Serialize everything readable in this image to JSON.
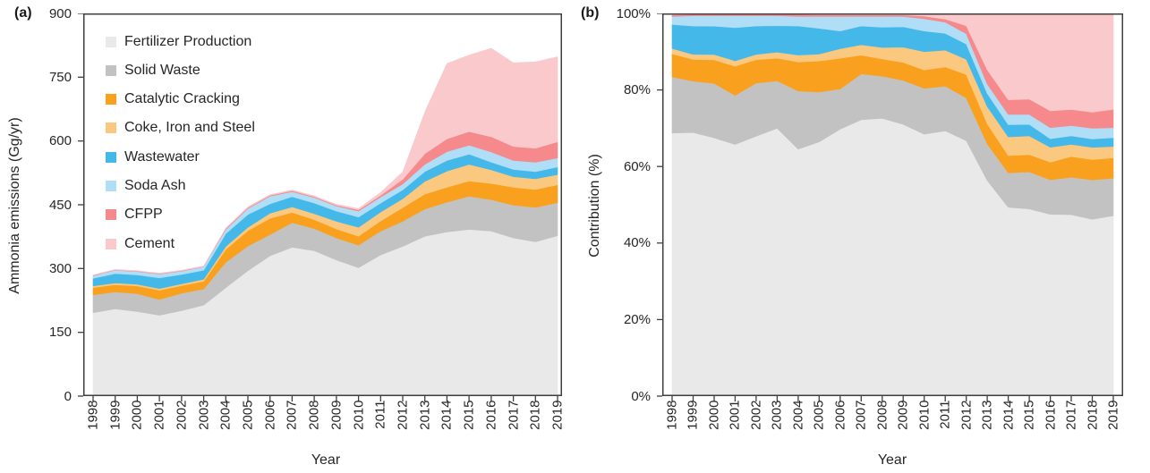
{
  "figure": {
    "background": "#ffffff",
    "axis_color": "#3f3f3f",
    "text_color": "#262626"
  },
  "series_colors": {
    "fertilizer_production": "#E9E9E9",
    "solid_waste": "#C2C2C2",
    "catalytic_cracking": "#F9A11F",
    "coke_iron_and_steel": "#FAC87E",
    "wastewater": "#45B8EA",
    "soda_ash": "#AFDEF6",
    "cfpp": "#F5898C",
    "cement": "#FAC9CC"
  },
  "chart_data": [
    {
      "id": "a",
      "panel_label": "(a)",
      "type": "area",
      "stacked": true,
      "percent": false,
      "xlabel": "Year",
      "ylabel": "Ammonia emissions (Gg/yr)",
      "ylim": [
        0,
        900
      ],
      "yticks": [
        0,
        150,
        300,
        450,
        600,
        750,
        900
      ],
      "ytick_labels": [
        "0",
        "150",
        "300",
        "450",
        "600",
        "750",
        "900"
      ],
      "legend_position": "upper-left",
      "grid": false,
      "x": [
        1998,
        1999,
        2000,
        2001,
        2002,
        2003,
        2004,
        2005,
        2006,
        2007,
        2008,
        2009,
        2010,
        2011,
        2012,
        2013,
        2014,
        2015,
        2016,
        2017,
        2018,
        2019
      ],
      "series": [
        {
          "key": "fertilizer_production",
          "name": "Fertilizer Production",
          "color": "#E9E9E9",
          "values": [
            196,
            205,
            199,
            190,
            201,
            214,
            255,
            295,
            330,
            350,
            342,
            320,
            302,
            332,
            352,
            376,
            386,
            392,
            388,
            372,
            363,
            377
          ]
        },
        {
          "key": "solid_waste",
          "name": "Solid Waste",
          "color": "#C2C2C2",
          "values": [
            42,
            40,
            42,
            37,
            41,
            38,
            60,
            58,
            50,
            58,
            52,
            52,
            53,
            56,
            59,
            64,
            70,
            78,
            74,
            77,
            81,
            78
          ]
        },
        {
          "key": "catalytic_cracking",
          "name": "Catalytic Cracking",
          "color": "#F9A11F",
          "values": [
            17,
            17,
            18,
            22,
            18,
            18,
            30,
            36,
            38,
            24,
            21,
            21,
            21,
            24,
            32,
            35,
            35,
            36,
            38,
            42,
            42,
            42
          ]
        },
        {
          "key": "coke_iron_and_steel",
          "name": "Coke, Iron and Steel",
          "color": "#FAC87E",
          "values": [
            4,
            4,
            4,
            4,
            4,
            5,
            7,
            8,
            12,
            13,
            14,
            18,
            21,
            21,
            21,
            30,
            38,
            39,
            32,
            25,
            25,
            24
          ]
        },
        {
          "key": "wastewater",
          "name": "Wastewater",
          "color": "#45B8EA",
          "values": [
            18,
            22,
            22,
            25,
            22,
            21,
            30,
            30,
            22,
            24,
            25,
            24,
            24,
            21,
            21,
            23,
            25,
            24,
            18,
            17,
            17,
            18
          ]
        },
        {
          "key": "soda_ash",
          "name": "Soda Ash",
          "color": "#AFDEF6",
          "values": [
            6,
            8,
            8,
            9,
            8,
            8,
            10,
            14,
            18,
            12,
            13,
            12,
            14,
            14,
            14,
            17,
            21,
            21,
            24,
            21,
            22,
            21
          ]
        },
        {
          "key": "cfpp",
          "name": "CFPP",
          "color": "#F5898C",
          "values": [
            1,
            1,
            1,
            1,
            1,
            1,
            2,
            2,
            2,
            2,
            2,
            2,
            3,
            4,
            11,
            25,
            30,
            32,
            36,
            33,
            33,
            38
          ]
        },
        {
          "key": "cement",
          "name": "Cement",
          "color": "#FAC9CC",
          "values": [
            1,
            1,
            1,
            1,
            1,
            1,
            1,
            2,
            2,
            2,
            2,
            2,
            3,
            7,
            17,
            98,
            177,
            180,
            208,
            197,
            203,
            200
          ]
        }
      ]
    },
    {
      "id": "b",
      "panel_label": "(b)",
      "type": "area",
      "stacked": true,
      "percent": true,
      "xlabel": "Year",
      "ylabel": "Contribution (%)",
      "ylim": [
        0,
        100
      ],
      "yticks": [
        0,
        20,
        40,
        60,
        80,
        100
      ],
      "ytick_labels": [
        "0%",
        "20%",
        "40%",
        "60%",
        "80%",
        "100%"
      ],
      "legend_position": "none",
      "grid": false,
      "x": [
        1998,
        1999,
        2000,
        2001,
        2002,
        2003,
        2004,
        2005,
        2006,
        2007,
        2008,
        2009,
        2010,
        2011,
        2012,
        2013,
        2014,
        2015,
        2016,
        2017,
        2018,
        2019
      ],
      "series": [
        {
          "key": "fertilizer_production",
          "name": "Fertilizer Production",
          "color": "#E9E9E9",
          "values": [
            68.8,
            68.8,
            67.2,
            65.7,
            67.9,
            69.9,
            64.6,
            66.3,
            69.6,
            72.2,
            72.6,
            71.0,
            68.5,
            69.3,
            66.8,
            56.3,
            49.4,
            48.9,
            47.4,
            47.4,
            46.2,
            47.2
          ]
        },
        {
          "key": "solid_waste",
          "name": "Solid Waste",
          "color": "#C2C2C2",
          "values": [
            14.7,
            13.4,
            14.2,
            12.8,
            13.9,
            12.4,
            15.2,
            13.0,
            10.5,
            12.0,
            11.0,
            11.5,
            12.0,
            11.7,
            11.2,
            9.6,
            9.0,
            9.7,
            9.0,
            9.8,
            10.3,
            9.8
          ]
        },
        {
          "key": "catalytic_cracking",
          "name": "Catalytic Cracking",
          "color": "#F9A11F",
          "values": [
            6.0,
            5.7,
            6.1,
            7.6,
            6.1,
            5.9,
            7.6,
            8.1,
            8.0,
            4.9,
            4.5,
            4.7,
            4.8,
            5.0,
            6.1,
            5.2,
            4.5,
            4.5,
            4.6,
            5.4,
            5.3,
            5.3
          ]
        },
        {
          "key": "coke_iron_and_steel",
          "name": "Coke, Iron and Steel",
          "color": "#FAC87E",
          "values": [
            1.4,
            1.3,
            1.4,
            1.4,
            1.4,
            1.6,
            1.8,
            1.8,
            2.5,
            2.7,
            3.0,
            4.0,
            4.8,
            4.4,
            4.0,
            4.5,
            4.9,
            4.9,
            3.9,
            3.2,
            3.2,
            3.0
          ]
        },
        {
          "key": "wastewater",
          "name": "Wastewater",
          "color": "#45B8EA",
          "values": [
            6.3,
            7.4,
            7.4,
            8.7,
            7.4,
            6.9,
            7.6,
            6.7,
            4.6,
            4.9,
            5.3,
            5.3,
            5.4,
            4.4,
            4.0,
            3.4,
            3.2,
            3.0,
            2.2,
            2.2,
            2.2,
            2.3
          ]
        },
        {
          "key": "soda_ash",
          "name": "Soda Ash",
          "color": "#AFDEF6",
          "values": [
            2.1,
            2.7,
            2.7,
            3.1,
            2.7,
            2.6,
            2.5,
            3.1,
            3.8,
            2.5,
            2.8,
            2.7,
            3.2,
            2.9,
            2.7,
            2.5,
            2.7,
            2.6,
            2.9,
            2.7,
            2.8,
            2.6
          ]
        },
        {
          "key": "cfpp",
          "name": "CFPP",
          "color": "#F5898C",
          "values": [
            0.4,
            0.3,
            0.3,
            0.3,
            0.3,
            0.3,
            0.5,
            0.4,
            0.4,
            0.4,
            0.4,
            0.4,
            0.7,
            0.8,
            2.1,
            3.7,
            3.8,
            4.0,
            4.4,
            4.2,
            4.2,
            4.8
          ]
        },
        {
          "key": "cement",
          "name": "Cement",
          "color": "#FAC9CC",
          "values": [
            0.4,
            0.3,
            0.3,
            0.3,
            0.3,
            0.3,
            0.3,
            0.4,
            0.4,
            0.4,
            0.4,
            0.4,
            0.7,
            1.5,
            3.2,
            14.7,
            22.6,
            22.4,
            25.4,
            25.1,
            25.8,
            25.1
          ]
        }
      ]
    }
  ]
}
